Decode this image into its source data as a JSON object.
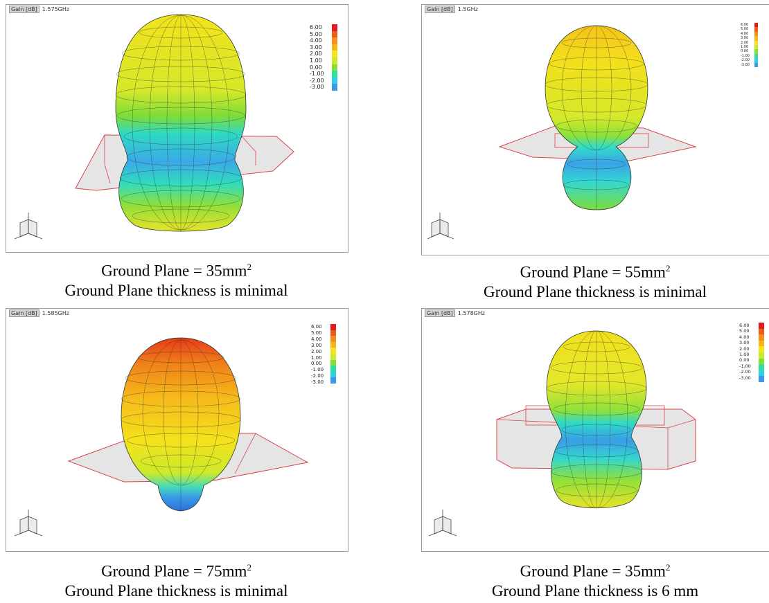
{
  "colors": {
    "scale": [
      "#e31a1c",
      "#ef5a1a",
      "#f58f18",
      "#f8b51a",
      "#f6e41c",
      "#c9ec2a",
      "#86e03a",
      "#2ee09a",
      "#2ecfe8",
      "#3c98e6",
      "#2f5fd9"
    ],
    "ground_edge": "#d9434a",
    "ground_fill": "#c9c9c9",
    "mesh": "#2a3a2a"
  },
  "legend_values": [
    "6.00",
    "5.00",
    "4.00",
    "3.00",
    "2.00",
    "1.00",
    "0.00",
    "-1.00",
    "-2.00",
    "-3.00"
  ],
  "panels": [
    {
      "header_tag": "Gain [dB]",
      "header_freq": "1.575GHz",
      "caption_line1_a": "Ground Plane = 35mm",
      "caption_sup": "2",
      "caption_line2": "Ground Plane thickness is minimal"
    },
    {
      "header_tag": "Gain [dB]",
      "header_freq": "1.5GHz",
      "caption_line1_a": "Ground Plane = 55mm",
      "caption_sup": "2",
      "caption_line2": "Ground Plane thickness is minimal"
    },
    {
      "header_tag": "Gain [dB]",
      "header_freq": "1.585GHz",
      "caption_line1_a": "Ground Plane = 75mm",
      "caption_sup": "2",
      "caption_line2": "Ground Plane thickness is minimal"
    },
    {
      "header_tag": "Gain [dB]",
      "header_freq": "1.578GHz",
      "caption_line1_a": "Ground Plane = 35mm",
      "caption_sup": "2",
      "caption_line2": "Ground Plane thickness is 6 mm"
    }
  ]
}
